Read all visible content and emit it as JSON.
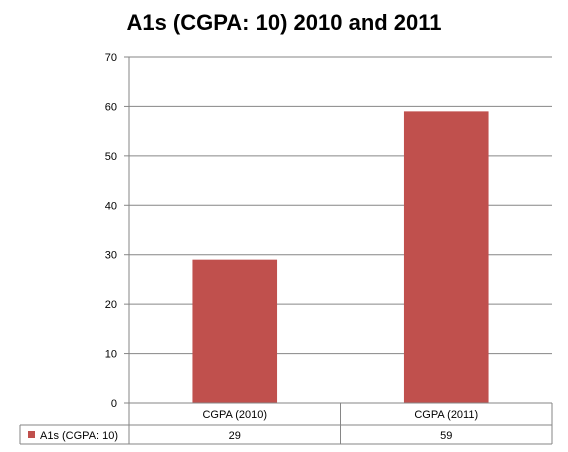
{
  "chart_data": {
    "type": "bar",
    "title": "A1s (CGPA: 10) 2010 and 2011",
    "categories": [
      "CGPA (2010)",
      "CGPA (2011)"
    ],
    "series": [
      {
        "name": "A1s (CGPA: 10)",
        "values": [
          29,
          59
        ],
        "color": "#c0504d"
      }
    ],
    "ylim": [
      0,
      70
    ],
    "yticks": [
      0,
      10,
      20,
      30,
      40,
      50,
      60,
      70
    ],
    "grid": true,
    "legend": "data-table"
  }
}
